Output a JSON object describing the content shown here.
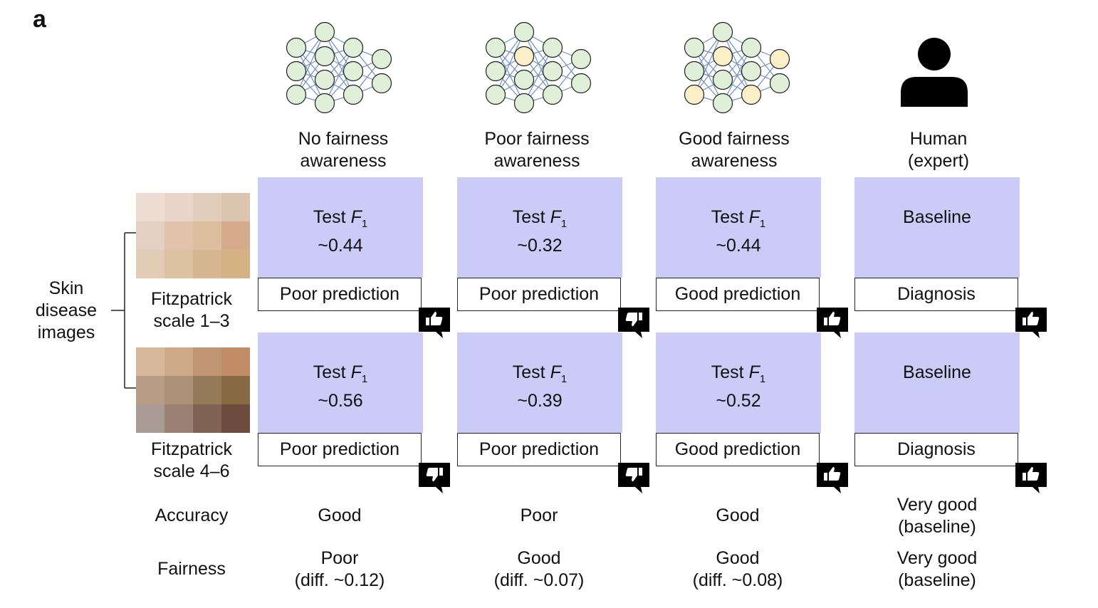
{
  "panel_label": "a",
  "left_label": "Skin\ndisease\nimages",
  "rows": [
    {
      "label": "Fitzpatrick\nscale 1–3",
      "swatches": [
        "#ecdcd1",
        "#e7d6c9",
        "#e0cdbc",
        "#dcc5ae",
        "#e4d0c2",
        "#e1c3ac",
        "#ddbf9f",
        "#d6aa8d",
        "#e2ccb5",
        "#ddc2a2",
        "#d7b68f",
        "#d4b284"
      ]
    },
    {
      "label": "Fitzpatrick\nscale 4–6",
      "swatches": [
        "#d6b79a",
        "#cfaa8a",
        "#c09673",
        "#c18c66",
        "#b89c86",
        "#ad9278",
        "#967b5a",
        "#876943",
        "#aa9b94",
        "#998072",
        "#806354",
        "#6d4c3d"
      ]
    }
  ],
  "columns": [
    {
      "title": "No fairness\nawareness",
      "icon": "neural-network-icon",
      "cells": [
        {
          "metric_label": "Test F",
          "metric_sub": "1",
          "metric_value": "~0.44",
          "prediction": "Poor prediction",
          "thumb": "up"
        },
        {
          "metric_label": "Test F",
          "metric_sub": "1",
          "metric_value": "~0.56",
          "prediction": "Poor prediction",
          "thumb": "down"
        }
      ],
      "accuracy": "Good",
      "fairness": "Poor\n(diff. ~0.12)"
    },
    {
      "title": "Poor fairness\nawareness",
      "icon": "neural-network-icon",
      "cells": [
        {
          "metric_label": "Test F",
          "metric_sub": "1",
          "metric_value": "~0.32",
          "prediction": "Poor prediction",
          "thumb": "down"
        },
        {
          "metric_label": "Test F",
          "metric_sub": "1",
          "metric_value": "~0.39",
          "prediction": "Poor prediction",
          "thumb": "down"
        }
      ],
      "accuracy": "Poor",
      "fairness": "Good\n(diff. ~0.07)"
    },
    {
      "title": "Good fairness\nawareness",
      "icon": "neural-network-icon",
      "cells": [
        {
          "metric_label": "Test F",
          "metric_sub": "1",
          "metric_value": "~0.44",
          "prediction": "Good prediction",
          "thumb": "up"
        },
        {
          "metric_label": "Test F",
          "metric_sub": "1",
          "metric_value": "~0.52",
          "prediction": "Good prediction",
          "thumb": "up"
        }
      ],
      "accuracy": "Good",
      "fairness": "Good\n(diff. ~0.08)"
    },
    {
      "title": "Human\n(expert)",
      "icon": "person-icon",
      "cells": [
        {
          "metric_label": "Baseline",
          "metric_sub": "",
          "metric_value": "",
          "prediction": "Diagnosis",
          "thumb": "up"
        },
        {
          "metric_label": "Baseline",
          "metric_sub": "",
          "metric_value": "",
          "prediction": "Diagnosis",
          "thumb": "up"
        }
      ],
      "accuracy": "Very good\n(baseline)",
      "fairness": "Very good\n(baseline)"
    }
  ],
  "bottom_labels": {
    "accuracy": "Accuracy",
    "fairness": "Fairness"
  },
  "colors": {
    "metric_fill": "#cbcbf7",
    "node_green": "#e0efd8",
    "node_yellow": "#fbefc8",
    "edge_blue": "#6f8fc9",
    "badge": "#000000"
  },
  "network_highlights": [
    [],
    [
      "L1N1",
      "L2N3"
    ],
    [
      "L0N2",
      "L1N1",
      "L2N2",
      "L3N0"
    ]
  ]
}
